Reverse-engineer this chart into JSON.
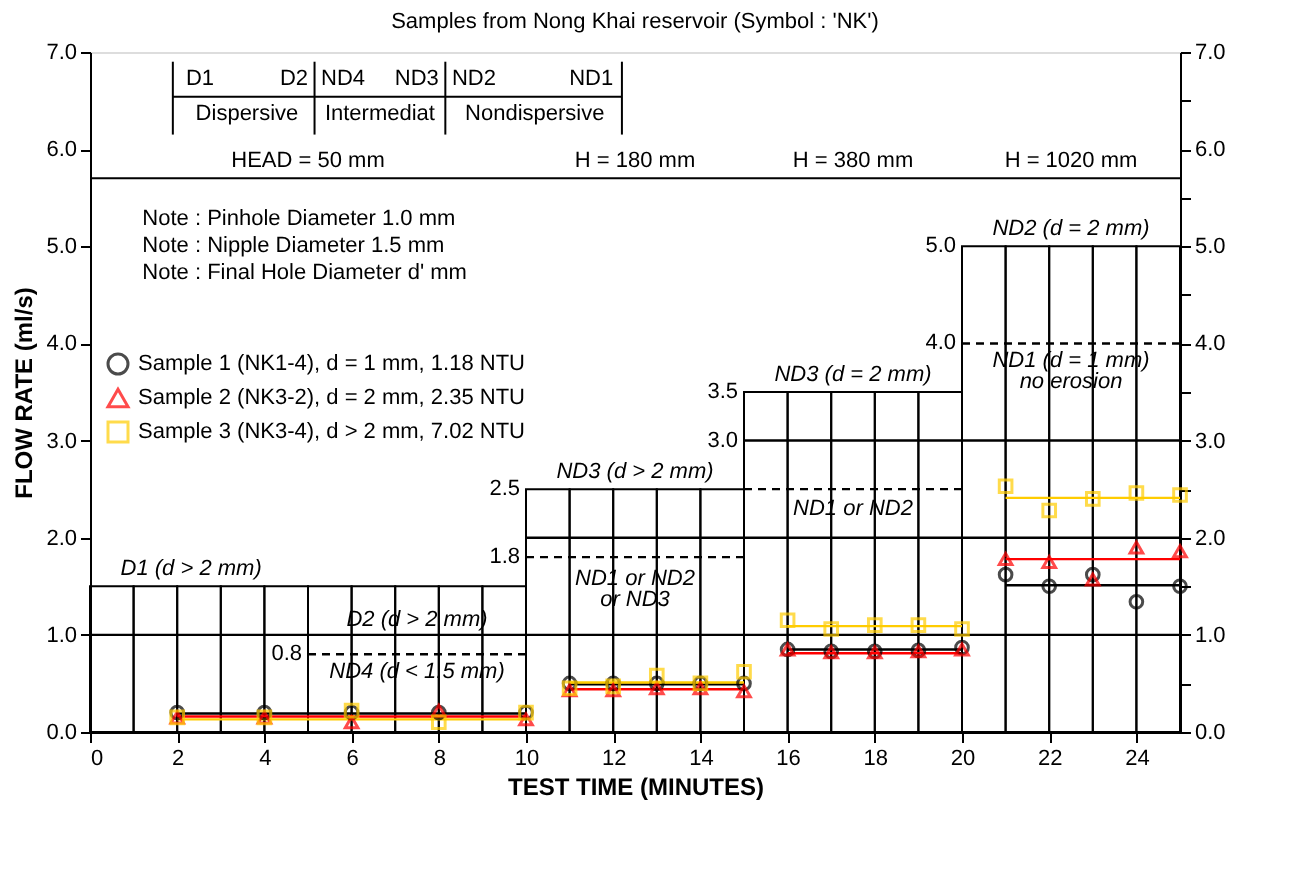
{
  "chart_data": {
    "type": "scatter",
    "title": "Samples from Nong Khai reservoir (Symbol : 'NK')",
    "xlabel": "TEST TIME (MINUTES)",
    "ylabel": "FLOW RATE (ml/s)",
    "xlim": [
      0,
      25
    ],
    "xticks": [
      0,
      2,
      4,
      6,
      8,
      10,
      12,
      14,
      16,
      18,
      20,
      22,
      24
    ],
    "ylim": [
      0,
      7
    ],
    "yticks": [
      {
        "value": 0,
        "label": "0.0"
      },
      {
        "value": 0.5,
        "label": null
      },
      {
        "value": 1,
        "label": "1.0"
      },
      {
        "value": 1.5,
        "label": null
      },
      {
        "value": 2,
        "label": "2.0"
      },
      {
        "value": 2.5,
        "label": null
      },
      {
        "value": 3,
        "label": "3.0"
      },
      {
        "value": 3.5,
        "label": null
      },
      {
        "value": 4,
        "label": "4.0"
      },
      {
        "value": 4.5,
        "label": null
      },
      {
        "value": 5,
        "label": "5.0"
      },
      {
        "value": 5.5,
        "label": null
      },
      {
        "value": 6,
        "label": "6.0"
      },
      {
        "value": 6.5,
        "label": null
      },
      {
        "value": 7,
        "label": "7.0"
      }
    ],
    "y2lim": [
      0,
      7
    ],
    "y2ticks": [
      {
        "value": 0,
        "label": "0.0"
      },
      {
        "value": 0.5,
        "label": null
      },
      {
        "value": 1,
        "label": "1.0"
      },
      {
        "value": 1.5,
        "label": null
      },
      {
        "value": 2,
        "label": "2.0"
      },
      {
        "value": 2.5,
        "label": null
      },
      {
        "value": 3,
        "label": "3.0"
      },
      {
        "value": 3.5,
        "label": null
      },
      {
        "value": 4,
        "label": "4.0"
      },
      {
        "value": 4.5,
        "label": null
      },
      {
        "value": 5,
        "label": "5.0"
      },
      {
        "value": 5.5,
        "label": null
      },
      {
        "value": 6,
        "label": "6.0"
      },
      {
        "value": 6.5,
        "label": null
      },
      {
        "value": 7,
        "label": "7.0"
      }
    ],
    "legend": "left",
    "ref_lines": [
      {
        "axis": "y",
        "value": 5.7,
        "color": "#000000"
      }
    ],
    "series": [
      {
        "type": "bar",
        "color": "#000000",
        "x": [
          0.5,
          1.5,
          2.5,
          3.5,
          4.5,
          5.5,
          6.5,
          7.5,
          8.5,
          9.5,
          10.5,
          11.5,
          12.5,
          13.5,
          14.5,
          15.5,
          16.5,
          17.5,
          18.5,
          19.5,
          20.5,
          21.5,
          22.5,
          23.5,
          24.5
        ],
        "values": [
          1.5,
          1.5,
          1.5,
          1.5,
          1.5,
          1.5,
          1.5,
          1.5,
          1.5,
          1.5,
          2.5,
          2.5,
          2.5,
          2.5,
          2.5,
          3.5,
          3.5,
          3.5,
          3.5,
          3.5,
          5.0,
          5.0,
          5.0,
          5.0,
          5.0
        ]
      },
      {
        "type": "line",
        "line_style": "dashed",
        "color": "#000000",
        "x": [
          5,
          10
        ],
        "values": [
          0.8,
          0.8
        ]
      },
      {
        "type": "line",
        "line_style": "dashed",
        "color": "#000000",
        "x": [
          10,
          15
        ],
        "values": [
          1.8,
          1.8
        ]
      },
      {
        "type": "line",
        "line_style": "dashed",
        "color": "#000000",
        "x": [
          15,
          20
        ],
        "values": [
          2.5,
          2.5
        ]
      },
      {
        "type": "line",
        "line_style": "dashed",
        "color": "#000000",
        "x": [
          20,
          25
        ],
        "values": [
          4.0,
          4.0
        ]
      },
      {
        "type": "line",
        "color": "#000000",
        "x": [
          0,
          25
        ],
        "values": [
          1.0,
          1.0
        ]
      },
      {
        "type": "line",
        "color": "#000000",
        "x": [
          10,
          25
        ],
        "values": [
          2.0,
          2.0
        ]
      },
      {
        "type": "line",
        "color": "#000000",
        "x": [
          15,
          25
        ],
        "values": [
          3.0,
          3.0
        ]
      },
      {
        "type": "line",
        "color": "#000000",
        "x": [
          2,
          10
        ],
        "values": [
          0.19,
          0.19
        ]
      },
      {
        "type": "line",
        "color": "#000000",
        "x": [
          11,
          15
        ],
        "values": [
          0.49,
          0.49
        ]
      },
      {
        "type": "line",
        "color": "#000000",
        "x": [
          16,
          20
        ],
        "values": [
          0.85,
          0.85
        ]
      },
      {
        "type": "line",
        "color": "#000000",
        "x": [
          21,
          25
        ],
        "values": [
          1.51,
          1.51
        ]
      },
      {
        "type": "line",
        "color": "#ff0000",
        "x": [
          2,
          10
        ],
        "values": [
          0.16,
          0.16
        ]
      },
      {
        "type": "line",
        "color": "#ff0000",
        "x": [
          11,
          15
        ],
        "values": [
          0.44,
          0.44
        ]
      },
      {
        "type": "line",
        "color": "#ff0000",
        "x": [
          16,
          20
        ],
        "values": [
          0.81,
          0.81
        ]
      },
      {
        "type": "line",
        "color": "#ff0000",
        "x": [
          21,
          25
        ],
        "values": [
          1.78,
          1.78
        ]
      },
      {
        "type": "line",
        "color": "#ffcc00",
        "x": [
          2,
          10
        ],
        "values": [
          0.13,
          0.13
        ]
      },
      {
        "type": "line",
        "color": "#ffcc00",
        "x": [
          11,
          15
        ],
        "values": [
          0.51,
          0.51
        ]
      },
      {
        "type": "line",
        "color": "#ffcc00",
        "x": [
          16,
          20
        ],
        "values": [
          1.09,
          1.09
        ]
      },
      {
        "type": "line",
        "color": "#ffcc00",
        "x": [
          21,
          25
        ],
        "values": [
          2.41,
          2.41
        ]
      },
      {
        "name": "Sample 1 (NK1-4), d = 1 mm, 1.18 NTU",
        "color": "#000000",
        "marker": "circle",
        "x": [
          2,
          4,
          6,
          8,
          10,
          11,
          12,
          13,
          14,
          15,
          16,
          17,
          18,
          19,
          20,
          21,
          22,
          23,
          24,
          25
        ],
        "values": [
          0.2,
          0.2,
          0.2,
          0.2,
          0.2,
          0.5,
          0.5,
          0.5,
          0.5,
          0.5,
          0.85,
          0.83,
          0.83,
          0.84,
          0.87,
          1.62,
          1.5,
          1.62,
          1.34,
          1.5
        ]
      },
      {
        "name": "Sample 2 (NK3-2), d = 2 mm, 2.35 NTU",
        "color": "#ff0000",
        "marker": "triangle",
        "x": [
          2,
          4,
          6,
          8,
          10,
          11,
          12,
          13,
          14,
          15,
          16,
          17,
          18,
          19,
          20,
          21,
          22,
          23,
          24,
          25
        ],
        "values": [
          0.15,
          0.15,
          0.1,
          0.22,
          0.13,
          0.43,
          0.43,
          0.45,
          0.45,
          0.42,
          0.85,
          0.82,
          0.82,
          0.83,
          0.85,
          1.78,
          1.75,
          1.57,
          1.9,
          1.86
        ]
      },
      {
        "name": "Sample 3 (NK3-4), d > 2 mm, 7.02 NTU",
        "color": "#ffcc00",
        "marker": "square",
        "x": [
          2,
          4,
          6,
          8,
          10,
          11,
          12,
          13,
          14,
          15,
          16,
          17,
          18,
          19,
          20,
          21,
          22,
          23,
          24,
          25
        ],
        "values": [
          0.15,
          0.15,
          0.22,
          0.1,
          0.2,
          0.45,
          0.47,
          0.58,
          0.5,
          0.62,
          1.15,
          1.06,
          1.1,
          1.1,
          1.06,
          2.53,
          2.28,
          2.4,
          2.46,
          2.44
        ]
      }
    ],
    "annotations": [
      "D1",
      "D2",
      "ND4",
      "ND3",
      "ND2",
      "ND1",
      "Dispersive",
      "Intermediat",
      "Nondispersive",
      "HEAD = 50 mm",
      "H = 180 mm",
      "H = 380 mm",
      "H = 1020 mm",
      "Note : Pinhole Diameter 1.0 mm",
      "Note : Nipple Diameter 1.5 mm",
      "Note : Final Hole Diameter  d' mm",
      "D1 (d > 2 mm)",
      "D2 (d > 2 mm)",
      "ND4 (d < 1.5 mm)",
      "ND3 (d > 2 mm)",
      "ND1 or ND2",
      "or ND3",
      "ND3 (d = 2 mm)",
      "ND1 or ND2",
      "ND2 (d = 2 mm)",
      "ND1 (d = 1 mm)",
      "no erosion",
      {
        "text": "0.8",
        "x": 5,
        "y": 0.8
      },
      {
        "text": "2.5",
        "x": 10,
        "y": 2.5
      },
      {
        "text": "1.8",
        "x": 10,
        "y": 1.8
      },
      {
        "text": "3.5",
        "x": 15,
        "y": 3.5
      },
      {
        "text": "3.0",
        "x": 15,
        "y": 3.0
      },
      {
        "text": "5.0",
        "x": 20,
        "y": 5.0
      },
      {
        "text": "4.0",
        "x": 20,
        "y": 4.0
      }
    ]
  }
}
